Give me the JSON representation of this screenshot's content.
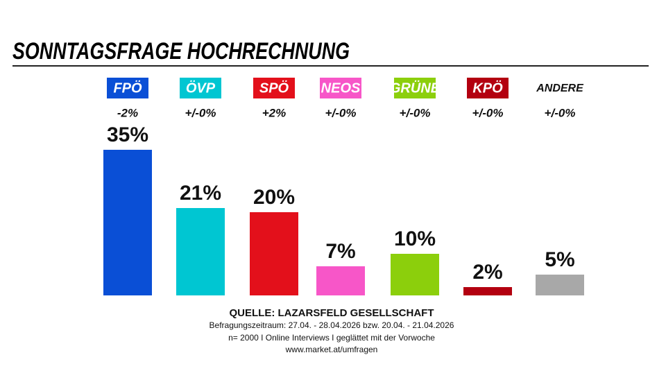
{
  "chart_data": {
    "type": "bar",
    "title": "SONNTAGSFRAGE HOCHRECHNUNG",
    "categories": [
      "FPÖ",
      "ÖVP",
      "SPÖ",
      "NEOS",
      "GRÜNE",
      "KPÖ",
      "ANDERE"
    ],
    "values": [
      35,
      21,
      20,
      7,
      10,
      2,
      5
    ],
    "value_labels": [
      "35%",
      "21%",
      "20%",
      "7%",
      "10%",
      "2%",
      "5%"
    ],
    "changes": [
      "-2%",
      "+/-0%",
      "+2%",
      "+/-0%",
      "+/-0%",
      "+/-0%",
      "+/-0%"
    ],
    "colors": [
      "#0a4fd6",
      "#00c6d2",
      "#e3101b",
      "#f756c8",
      "#8ccf0c",
      "#b30010",
      "#a8a8a8"
    ],
    "label_box_colors": [
      "#0a4fd6",
      "#00c6d2",
      "#e3101b",
      "#f756c8",
      "#8ccf0c",
      "#b30010",
      null
    ],
    "source": [
      "QUELLE: LAZARSFELD GESELLSCHAFT",
      "Befragungszeitraum: 27.04. - 28.04.2026  bzw.  20.04. - 21.04.2026",
      "n= 2000 I Online Interviews I geglättet mit der Vorwoche",
      "www.market.at/umfragen"
    ]
  }
}
